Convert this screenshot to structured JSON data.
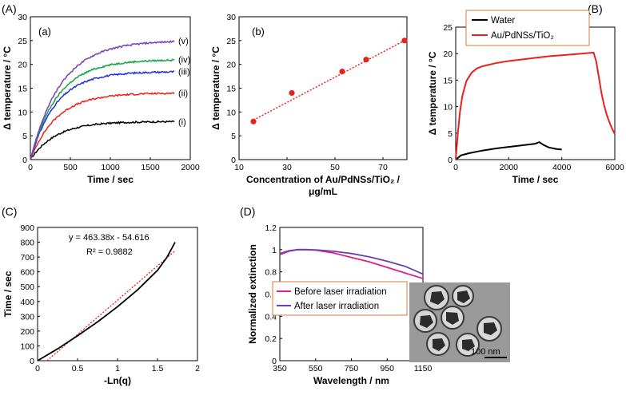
{
  "panel_labels": {
    "A": "(A)",
    "B": "(B)",
    "C": "(C)",
    "D": "(D)"
  },
  "chart_data": [
    {
      "id": "a",
      "type": "line",
      "sub_label": "(a)",
      "xlabel": "Time / sec",
      "ylabel": "Δ temperature / °C",
      "xlim": [
        0,
        2000
      ],
      "ylim": [
        0,
        30
      ],
      "xticks": [
        0,
        500,
        1000,
        1500,
        2000
      ],
      "yticks": [
        0,
        5,
        10,
        15,
        20,
        25,
        30
      ],
      "series": [
        {
          "name": "(i)",
          "color": "#000000",
          "plateau": 8,
          "tau": 320,
          "x_end": 1800
        },
        {
          "name": "(ii)",
          "color": "#e8211f",
          "plateau": 14,
          "tau": 330,
          "x_end": 1800
        },
        {
          "name": "(iii)",
          "color": "#1f2fd8",
          "plateau": 18.5,
          "tau": 320,
          "x_end": 1800
        },
        {
          "name": "(iv)",
          "color": "#16a34a",
          "plateau": 21,
          "tau": 340,
          "x_end": 1800
        },
        {
          "name": "(v)",
          "color": "#7b3fb8",
          "plateau": 25,
          "tau": 380,
          "x_end": 1800
        }
      ]
    },
    {
      "id": "b",
      "type": "scatter",
      "sub_label": "(b)",
      "xlabel": "Concentration of Au/PdNSs/TiO₂ /",
      "xlabel2": "μg/mL",
      "ylabel": "Δ temperature / °C",
      "xlim": [
        10,
        80
      ],
      "ylim": [
        0,
        30
      ],
      "xticks": [
        10,
        30,
        50,
        70
      ],
      "yticks": [
        0,
        5,
        10,
        15,
        20,
        25,
        30
      ],
      "x": [
        16,
        32,
        53,
        63,
        79
      ],
      "y": [
        8,
        14,
        18.5,
        21,
        25
      ],
      "trendline": {
        "x0": 16,
        "y0": 8.3,
        "x1": 79,
        "y1": 25
      }
    },
    {
      "id": "B",
      "type": "line",
      "xlabel": "Time / sec",
      "ylabel": "Δ temperature / °C",
      "xlim": [
        0,
        6000
      ],
      "ylim": [
        0,
        25
      ],
      "xticks": [
        0,
        2000,
        4000,
        6000
      ],
      "yticks": [
        0,
        5,
        10,
        15,
        20,
        25
      ],
      "series": [
        {
          "name": "Water",
          "color": "#000000",
          "points": [
            [
              0,
              0
            ],
            [
              200,
              0.8
            ],
            [
              500,
              1.2
            ],
            [
              1000,
              1.7
            ],
            [
              1500,
              2.1
            ],
            [
              2000,
              2.4
            ],
            [
              2500,
              2.7
            ],
            [
              3000,
              3.0
            ],
            [
              3150,
              3.3
            ],
            [
              3300,
              2.8
            ],
            [
              3500,
              2.3
            ],
            [
              3800,
              2.0
            ],
            [
              4000,
              1.9
            ]
          ]
        },
        {
          "name": "Au/PdNSs/TiO₂",
          "color": "#e8211f",
          "points": [
            [
              0,
              0
            ],
            [
              80,
              5
            ],
            [
              160,
              9
            ],
            [
              250,
              12
            ],
            [
              400,
              14.8
            ],
            [
              600,
              16.4
            ],
            [
              800,
              17.2
            ],
            [
              1000,
              17.6
            ],
            [
              1500,
              18.2
            ],
            [
              2000,
              18.6
            ],
            [
              2500,
              18.9
            ],
            [
              3000,
              19.2
            ],
            [
              3500,
              19.5
            ],
            [
              4000,
              19.7
            ],
            [
              4500,
              19.9
            ],
            [
              5000,
              20.1
            ],
            [
              5200,
              20.2
            ],
            [
              5300,
              18.5
            ],
            [
              5400,
              15.5
            ],
            [
              5500,
              12.5
            ],
            [
              5600,
              10.2
            ],
            [
              5700,
              8.4
            ],
            [
              5800,
              7.0
            ],
            [
              5900,
              5.8
            ],
            [
              6000,
              4.8
            ]
          ]
        }
      ]
    },
    {
      "id": "C",
      "type": "line",
      "xlabel": "-Ln(q)",
      "ylabel": "Time / sec",
      "xlim": [
        0,
        2
      ],
      "ylim": [
        0,
        900
      ],
      "xticks": [
        0,
        0.5,
        1,
        1.5,
        2
      ],
      "yticks": [
        0,
        100,
        200,
        300,
        400,
        500,
        600,
        700,
        800,
        900
      ],
      "equation": "y = 463.38x - 54.616",
      "r_squared": "R² = 0.9882",
      "fit": {
        "slope": 463.38,
        "intercept": -54.616,
        "x_end": 1.72
      },
      "series": [
        {
          "name": "data",
          "color": "#000000",
          "points": [
            [
              0,
              0
            ],
            [
              0.25,
              80
            ],
            [
              0.5,
              168
            ],
            [
              0.75,
              262
            ],
            [
              1.0,
              365
            ],
            [
              1.25,
              478
            ],
            [
              1.5,
              610
            ],
            [
              1.62,
              700
            ],
            [
              1.68,
              760
            ],
            [
              1.72,
              800
            ]
          ]
        }
      ]
    },
    {
      "id": "D",
      "type": "line",
      "xlabel": "Wavelength / nm",
      "ylabel": "Normalized extinction",
      "xlim": [
        350,
        1150
      ],
      "ylim": [
        0,
        1.2
      ],
      "xticks": [
        350,
        550,
        750,
        950,
        1150
      ],
      "yticks": [
        0,
        0.2,
        0.4,
        0.6,
        0.8,
        1,
        1.2
      ],
      "series": [
        {
          "name": "Before laser irradiation",
          "color": "#e0208a",
          "points": [
            [
              350,
              0.955
            ],
            [
              400,
              0.985
            ],
            [
              450,
              1.0
            ],
            [
              500,
              1.0
            ],
            [
              550,
              0.995
            ],
            [
              650,
              0.97
            ],
            [
              750,
              0.93
            ],
            [
              850,
              0.89
            ],
            [
              950,
              0.84
            ],
            [
              1050,
              0.79
            ],
            [
              1150,
              0.74
            ]
          ]
        },
        {
          "name": "After laser irradiation",
          "color": "#6b3fb0",
          "points": [
            [
              350,
              0.965
            ],
            [
              400,
              0.99
            ],
            [
              450,
              1.0
            ],
            [
              500,
              1.0
            ],
            [
              550,
              0.998
            ],
            [
              650,
              0.985
            ],
            [
              750,
              0.965
            ],
            [
              850,
              0.935
            ],
            [
              950,
              0.895
            ],
            [
              1050,
              0.85
            ],
            [
              1150,
              0.78
            ]
          ]
        }
      ],
      "inset_scale": "100 nm"
    }
  ]
}
